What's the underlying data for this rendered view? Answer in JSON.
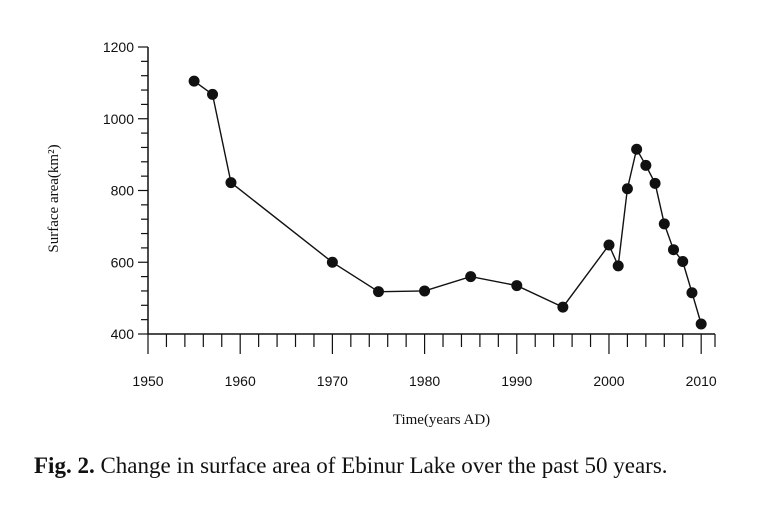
{
  "chart_data": {
    "type": "line",
    "xlabel": "Time(years AD)",
    "ylabel": "Surface area(km²)",
    "xlim": [
      1950,
      2012
    ],
    "ylim": [
      400,
      1200
    ],
    "x_ticks": [
      1950,
      1960,
      1970,
      1980,
      1990,
      2000,
      2010
    ],
    "y_ticks": [
      400,
      600,
      800,
      1000,
      1200
    ],
    "grid": false,
    "series": [
      {
        "x": [
          1955,
          1957,
          1959,
          1970,
          1975,
          1980,
          1985,
          1990,
          1995,
          2000,
          2001,
          2002,
          2003,
          2004,
          2005,
          2006,
          2007,
          2008,
          2009,
          2010
        ],
        "y": [
          1105,
          1068,
          822,
          600,
          518,
          520,
          560,
          535,
          475,
          648,
          590,
          805,
          915,
          870,
          820,
          707,
          635,
          602,
          515,
          428
        ]
      }
    ]
  },
  "caption": {
    "label": "Fig. 2.",
    "text": " Change in surface area of Ebinur Lake over the past 50 years."
  }
}
